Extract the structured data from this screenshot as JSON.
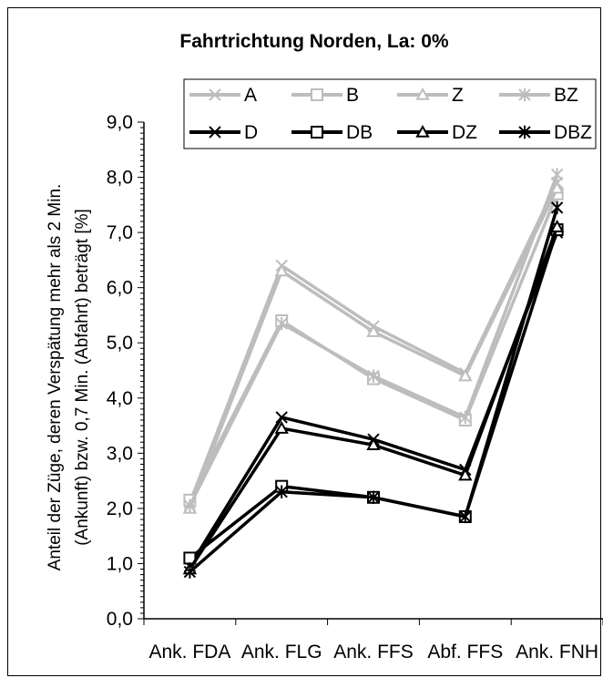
{
  "chart_data": {
    "type": "line",
    "title": "Fahrtrichtung Norden, La: 0%",
    "ylabel_line1": "Anteil der Züge, deren Verspätung mehr als 2 Min.",
    "ylabel_line2": "(Ankunft) bzw. 0,7 Min. (Abfahrt) beträgt [%]",
    "categories": [
      "Ank. FDA",
      "Ank. FLG",
      "Ank. FFS",
      "Abf. FFS",
      "Ank. FNH"
    ],
    "ylim": [
      0,
      9
    ],
    "yticks": [
      "0,0",
      "1,0",
      "2,0",
      "3,0",
      "4,0",
      "5,0",
      "6,0",
      "7,0",
      "8,0",
      "9,0"
    ],
    "legend_position": "top",
    "colors": {
      "gray": "#bdbdbd",
      "black": "#000000"
    },
    "series": [
      {
        "name": "A",
        "color": "#bdbdbd",
        "marker": "x",
        "values": [
          2.1,
          6.4,
          5.3,
          4.45,
          7.9
        ]
      },
      {
        "name": "B",
        "color": "#bdbdbd",
        "marker": "square",
        "values": [
          2.15,
          5.4,
          4.35,
          3.6,
          7.7
        ]
      },
      {
        "name": "Z",
        "color": "#bdbdbd",
        "marker": "triangle",
        "values": [
          2.0,
          6.3,
          5.2,
          4.4,
          7.8
        ]
      },
      {
        "name": "BZ",
        "color": "#bdbdbd",
        "marker": "star",
        "values": [
          2.05,
          5.35,
          4.4,
          3.65,
          8.05
        ]
      },
      {
        "name": "D",
        "color": "#000000",
        "marker": "x",
        "values": [
          0.95,
          3.65,
          3.25,
          2.7,
          7.0
        ]
      },
      {
        "name": "DB",
        "color": "#000000",
        "marker": "square",
        "values": [
          1.1,
          2.4,
          2.2,
          1.85,
          7.05
        ]
      },
      {
        "name": "DZ",
        "color": "#000000",
        "marker": "triangle",
        "values": [
          0.9,
          3.45,
          3.15,
          2.6,
          7.1
        ]
      },
      {
        "name": "DBZ",
        "color": "#000000",
        "marker": "star",
        "values": [
          0.85,
          2.3,
          2.2,
          1.85,
          7.45
        ]
      }
    ]
  }
}
